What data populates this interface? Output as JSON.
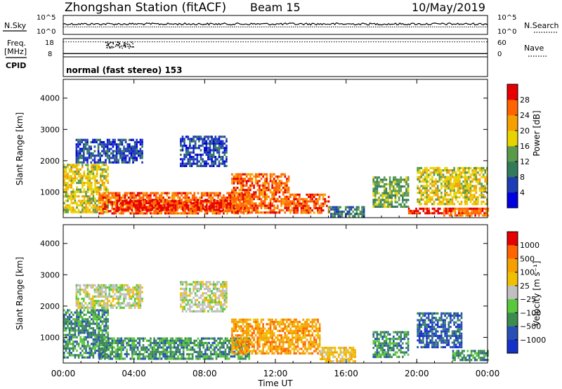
{
  "header": {
    "station": "Zhongshan Station (fitACF)",
    "beam": "Beam 15",
    "date": "10/May/2019"
  },
  "colors": {
    "power_scale": [
      "#0000e0",
      "#1e3cb4",
      "#327a5a",
      "#5a9a4a",
      "#e8d200",
      "#f5a000",
      "#ff6400",
      "#e60000"
    ],
    "velocity_scale": [
      "#e60000",
      "#ff6400",
      "#f5a000",
      "#f0c000",
      "#c0c0c0",
      "#5ac83c",
      "#3c8c50",
      "#2850b4",
      "#1432c8"
    ]
  },
  "chart_data": [
    {
      "type": "line",
      "name": "sky-search-panel",
      "ylabel_left": "N.Sky",
      "ylabel_right": "N.Search",
      "left_ticks": [
        "10^5",
        "10^0"
      ],
      "right_ticks": [
        "10^5",
        "10^0"
      ],
      "x": [
        0,
        2,
        4,
        6,
        8,
        10,
        12,
        14,
        16,
        18,
        20,
        22,
        24
      ],
      "n_sky_level": 0.55,
      "n_search_level": 0.4
    },
    {
      "type": "line",
      "name": "freq-nave-panel",
      "ylabel_left": "Freq.",
      "ylabel_left_unit": "[MHz]",
      "ylabel_right": "Nave",
      "left_ticks": [
        "18",
        "8"
      ],
      "right_ticks": [
        "60",
        "0"
      ],
      "nave_level": 0.82,
      "freq_level": 0.18,
      "cpid_label": "CPID",
      "cpid_text": "normal (fast stereo) 153"
    },
    {
      "type": "heatmap",
      "name": "power",
      "ylabel": "Slant Range [km]",
      "yticks": [
        1000,
        2000,
        3000,
        4000
      ],
      "ylim": [
        180,
        4600
      ],
      "xlim": [
        0,
        24
      ],
      "colorbar_label": "Power [dB]",
      "colorbar_ticks": [
        "4",
        "8",
        "12",
        "16",
        "20",
        "24",
        "28"
      ],
      "regions": [
        {
          "t0": 0.0,
          "t1": 2.5,
          "r0": 350,
          "r1": 1900,
          "level": 4
        },
        {
          "t0": 0.7,
          "t1": 4.5,
          "r0": 1950,
          "r1": 2700,
          "level": 1
        },
        {
          "t0": 2.0,
          "t1": 10.5,
          "r0": 350,
          "r1": 1000,
          "level": 6
        },
        {
          "t0": 3.0,
          "t1": 9.5,
          "r0": 450,
          "r1": 750,
          "level": 7
        },
        {
          "t0": 6.6,
          "t1": 9.2,
          "r0": 1800,
          "r1": 2800,
          "level": 1
        },
        {
          "t0": 9.5,
          "t1": 12.8,
          "r0": 350,
          "r1": 1600,
          "level": 6
        },
        {
          "t0": 12.8,
          "t1": 15.0,
          "r0": 350,
          "r1": 950,
          "level": 6
        },
        {
          "t0": 15.0,
          "t1": 17.0,
          "r0": 250,
          "r1": 550,
          "level": 2
        },
        {
          "t0": 17.5,
          "t1": 19.5,
          "r0": 500,
          "r1": 1500,
          "level": 3
        },
        {
          "t0": 19.5,
          "t1": 22.0,
          "r0": 300,
          "r1": 500,
          "level": 7
        },
        {
          "t0": 20.0,
          "t1": 24.0,
          "r0": 600,
          "r1": 1800,
          "level": 4
        },
        {
          "t0": 21.5,
          "t1": 24.0,
          "r0": 250,
          "r1": 500,
          "level": 6
        }
      ]
    },
    {
      "type": "heatmap",
      "name": "velocity",
      "ylabel": "Slant Range [km]",
      "yticks": [
        1000,
        2000,
        3000,
        4000
      ],
      "ylim": [
        180,
        4600
      ],
      "xlim": [
        0,
        24
      ],
      "colorbar_label": "Velocity [m s⁻¹]",
      "colorbar_ticks": [
        "1000",
        "500",
        "100",
        "25",
        "−25",
        "−100",
        "−500",
        "−1000"
      ],
      "regions": [
        {
          "t0": 0.0,
          "t1": 2.5,
          "r0": 350,
          "r1": 1900,
          "level": 6
        },
        {
          "t0": 0.7,
          "t1": 4.5,
          "r0": 1950,
          "r1": 2700,
          "level": 4
        },
        {
          "t0": 2.0,
          "t1": 10.5,
          "r0": 350,
          "r1": 1000,
          "level": 6
        },
        {
          "t0": 6.6,
          "t1": 9.2,
          "r0": 1800,
          "r1": 2800,
          "level": 4
        },
        {
          "t0": 9.5,
          "t1": 14.5,
          "r0": 500,
          "r1": 1600,
          "level": 2
        },
        {
          "t0": 14.5,
          "t1": 16.5,
          "r0": 250,
          "r1": 700,
          "level": 3
        },
        {
          "t0": 17.5,
          "t1": 19.5,
          "r0": 400,
          "r1": 1200,
          "level": 6
        },
        {
          "t0": 20.0,
          "t1": 22.5,
          "r0": 700,
          "r1": 1800,
          "level": 7
        },
        {
          "t0": 22.0,
          "t1": 24.0,
          "r0": 250,
          "r1": 600,
          "level": 6
        }
      ]
    }
  ],
  "xaxis": {
    "ticks": [
      "00:00",
      "04:00",
      "08:00",
      "12:00",
      "16:00",
      "20:00",
      "00:00"
    ],
    "label": "Time UT"
  }
}
